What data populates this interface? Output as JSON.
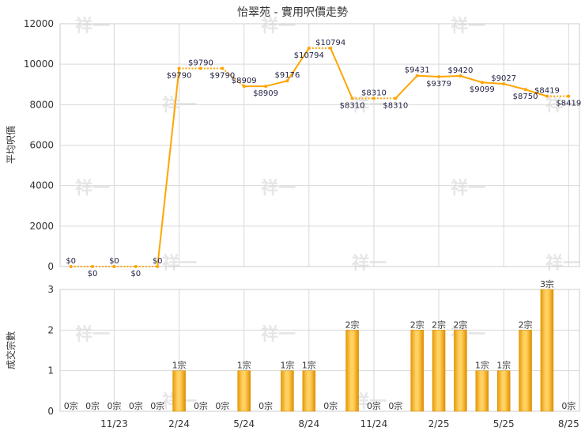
{
  "chart_data": [
    {
      "type": "line",
      "title": "怡翠苑 - 實用呎價走勢",
      "ylabel": "平均呎價",
      "ylim": [
        0,
        12000
      ],
      "yticks": [
        0,
        2000,
        4000,
        6000,
        8000,
        10000,
        12000
      ],
      "x_tick_labels": [
        "11/23",
        "2/24",
        "5/24",
        "8/24",
        "11/24",
        "2/25",
        "5/25",
        "8/25"
      ],
      "series": [
        {
          "color": "#ffa500",
          "values": [
            0,
            0,
            0,
            0,
            0,
            9790,
            9790,
            9790,
            8909,
            8909,
            9176,
            10794,
            10794,
            8310,
            8310,
            8310,
            9431,
            9379,
            9420,
            9099,
            9027,
            8750,
            8419,
            8419
          ],
          "labels": [
            "$0",
            "$0",
            "$0",
            "$0",
            "$0",
            "$9790",
            "$9790",
            "$9790",
            "$8909",
            "$8909",
            "$9176",
            "$10794",
            "$10794",
            "$8310",
            "$8310",
            "$8310",
            "$9431",
            "$9379",
            "$9420",
            "$9099",
            "$9027",
            "$8750",
            "$8419",
            "$8419"
          ],
          "solid_segments": [
            4,
            8,
            9,
            10,
            12,
            15,
            16,
            17,
            18,
            19,
            20,
            21
          ]
        }
      ]
    },
    {
      "type": "bar",
      "ylabel": "成交宗數",
      "ylim": [
        0,
        3
      ],
      "yticks": [
        0,
        1,
        2,
        3
      ],
      "x_tick_labels": [
        "11/23",
        "2/24",
        "5/24",
        "8/24",
        "11/24",
        "2/25",
        "5/25",
        "8/25"
      ],
      "series": [
        {
          "color": "#f0a500",
          "values": [
            0,
            0,
            0,
            0,
            0,
            1,
            0,
            0,
            1,
            0,
            1,
            1,
            0,
            2,
            0,
            0,
            2,
            2,
            2,
            1,
            1,
            2,
            3,
            0
          ],
          "labels": [
            "0宗",
            "0宗",
            "0宗",
            "0宗",
            "0宗",
            "1宗",
            "0宗",
            "0宗",
            "1宗",
            "0宗",
            "1宗",
            "1宗",
            "0宗",
            "2宗",
            "0宗",
            "0宗",
            "2宗",
            "2宗",
            "2宗",
            "1宗",
            "1宗",
            "2宗",
            "3宗",
            "0宗"
          ]
        }
      ]
    }
  ],
  "watermark": "祥一"
}
